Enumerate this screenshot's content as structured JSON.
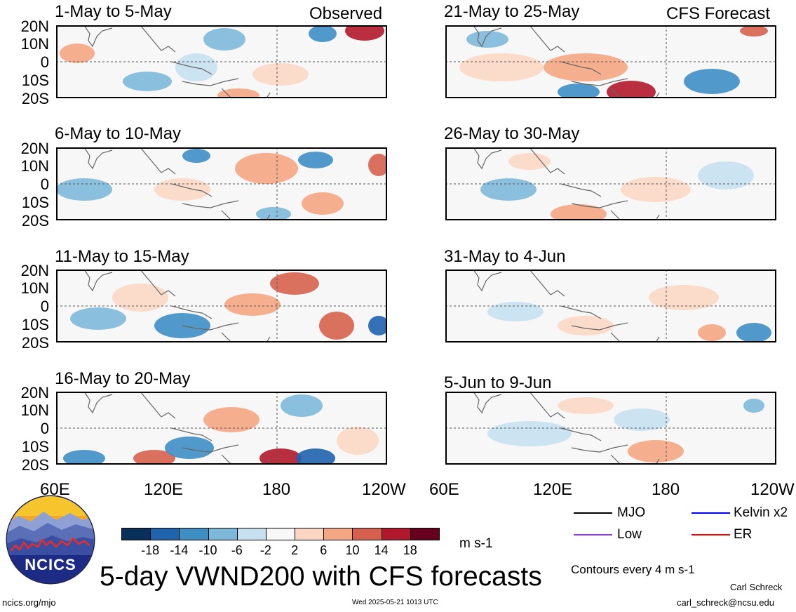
{
  "observed_label": "Observed",
  "forecast_label": "CFS Forecast",
  "y_ticks": [
    "20N",
    "10N",
    "0",
    "10S",
    "20S"
  ],
  "x_ticks": [
    "60E",
    "120E",
    "180",
    "120W"
  ],
  "panels": {
    "left": [
      "1-May to 5-May",
      "6-May to 10-May",
      "11-May to 15-May",
      "16-May to 20-May"
    ],
    "right": [
      "21-May to 25-May",
      "26-May to 30-May",
      "31-May to 4-Jun",
      "5-Jun to 9-Jun"
    ]
  },
  "colorbar": {
    "ticks": [
      "-18",
      "-14",
      "-10",
      "-6",
      "-2",
      "2",
      "6",
      "10",
      "14",
      "18"
    ],
    "colors": [
      "#08305a",
      "#1f63ad",
      "#3e8ec4",
      "#7db8da",
      "#c6e0ef",
      "#f7f7f7",
      "#fbd7c3",
      "#f4a582",
      "#d6604d",
      "#b2182b",
      "#67001f"
    ],
    "units": "m s-1"
  },
  "legend": {
    "items": [
      {
        "label": "MJO",
        "color": "#000000"
      },
      {
        "label": "Kelvin x2",
        "color": "#0000ff"
      },
      {
        "label": "Low",
        "color": "#9933ff"
      },
      {
        "label": "ER",
        "color": "#ff0000"
      }
    ],
    "contours_note": "Contours every 4 m s-1"
  },
  "title": "5-day VWND200 with CFS forecasts",
  "logo_text": "NCICS",
  "footer": {
    "url": "ncics.org/mjo",
    "timestamp": "Wed 2025-05-21 1013 UTC",
    "author": "Carl Schreck",
    "email": "carl_schreck@ncsu.edu"
  }
}
